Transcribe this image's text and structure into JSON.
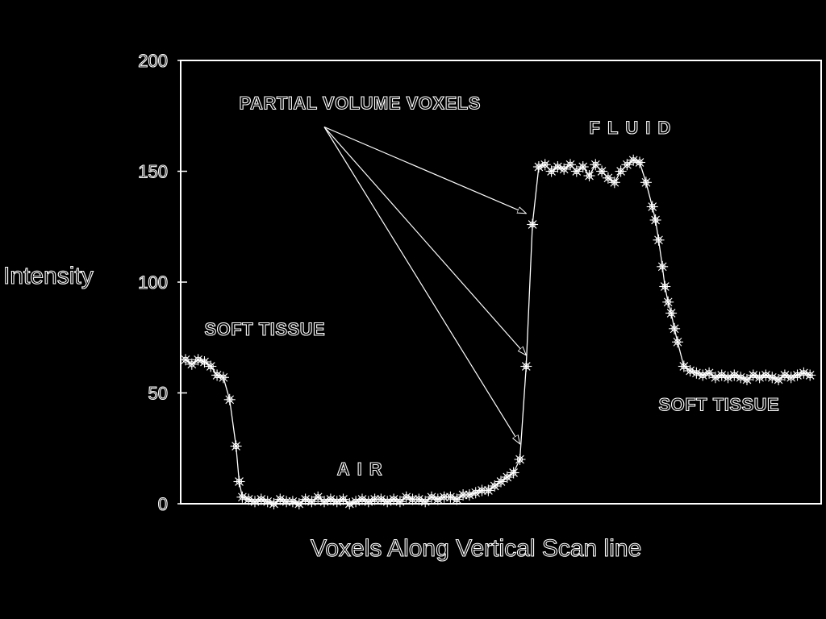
{
  "chart_data": {
    "type": "line",
    "xlabel": "Voxels Along Vertical Scan line",
    "ylabel": "Intensity",
    "ylim": [
      0,
      200
    ],
    "yticks": [
      0,
      50,
      100,
      150,
      200
    ],
    "x_range": [
      0,
      100
    ],
    "grid": false,
    "legend": "none",
    "series": [
      {
        "marker": "asterisk",
        "points": [
          {
            "x": 0,
            "y": 65
          },
          {
            "x": 1,
            "y": 63
          },
          {
            "x": 2,
            "y": 65
          },
          {
            "x": 3,
            "y": 64
          },
          {
            "x": 4,
            "y": 62
          },
          {
            "x": 5,
            "y": 58
          },
          {
            "x": 6,
            "y": 57
          },
          {
            "x": 7,
            "y": 47
          },
          {
            "x": 8,
            "y": 26
          },
          {
            "x": 8.5,
            "y": 10
          },
          {
            "x": 9,
            "y": 3
          },
          {
            "x": 10,
            "y": 2
          },
          {
            "x": 11,
            "y": 1
          },
          {
            "x": 12,
            "y": 2
          },
          {
            "x": 13,
            "y": 1
          },
          {
            "x": 14,
            "y": 0
          },
          {
            "x": 15,
            "y": 2
          },
          {
            "x": 16,
            "y": 1
          },
          {
            "x": 17,
            "y": 1
          },
          {
            "x": 18,
            "y": 0
          },
          {
            "x": 19,
            "y": 2
          },
          {
            "x": 20,
            "y": 1
          },
          {
            "x": 21,
            "y": 3
          },
          {
            "x": 22,
            "y": 1
          },
          {
            "x": 23,
            "y": 2
          },
          {
            "x": 24,
            "y": 1
          },
          {
            "x": 25,
            "y": 2
          },
          {
            "x": 26,
            "y": 0
          },
          {
            "x": 27,
            "y": 1
          },
          {
            "x": 28,
            "y": 2
          },
          {
            "x": 29,
            "y": 1
          },
          {
            "x": 30,
            "y": 2
          },
          {
            "x": 31,
            "y": 2
          },
          {
            "x": 32,
            "y": 1
          },
          {
            "x": 33,
            "y": 2
          },
          {
            "x": 34,
            "y": 1
          },
          {
            "x": 35,
            "y": 3
          },
          {
            "x": 36,
            "y": 2
          },
          {
            "x": 37,
            "y": 2
          },
          {
            "x": 38,
            "y": 1
          },
          {
            "x": 39,
            "y": 3
          },
          {
            "x": 40,
            "y": 2
          },
          {
            "x": 41,
            "y": 3
          },
          {
            "x": 42,
            "y": 3
          },
          {
            "x": 43,
            "y": 2
          },
          {
            "x": 44,
            "y": 4
          },
          {
            "x": 45,
            "y": 4
          },
          {
            "x": 46,
            "y": 5
          },
          {
            "x": 47,
            "y": 6
          },
          {
            "x": 48,
            "y": 6
          },
          {
            "x": 49,
            "y": 8
          },
          {
            "x": 50,
            "y": 10
          },
          {
            "x": 51,
            "y": 12
          },
          {
            "x": 52,
            "y": 14
          },
          {
            "x": 53,
            "y": 20
          },
          {
            "x": 54,
            "y": 62
          },
          {
            "x": 55,
            "y": 126
          },
          {
            "x": 56,
            "y": 152
          },
          {
            "x": 57,
            "y": 153
          },
          {
            "x": 58,
            "y": 150
          },
          {
            "x": 59,
            "y": 152
          },
          {
            "x": 60,
            "y": 151
          },
          {
            "x": 61,
            "y": 153
          },
          {
            "x": 62,
            "y": 150
          },
          {
            "x": 63,
            "y": 152
          },
          {
            "x": 64,
            "y": 148
          },
          {
            "x": 65,
            "y": 153
          },
          {
            "x": 66,
            "y": 150
          },
          {
            "x": 67,
            "y": 147
          },
          {
            "x": 68,
            "y": 145
          },
          {
            "x": 69,
            "y": 150
          },
          {
            "x": 70,
            "y": 153
          },
          {
            "x": 71,
            "y": 155
          },
          {
            "x": 72,
            "y": 154
          },
          {
            "x": 73,
            "y": 145
          },
          {
            "x": 74,
            "y": 134
          },
          {
            "x": 74.5,
            "y": 128
          },
          {
            "x": 75,
            "y": 119
          },
          {
            "x": 75.6,
            "y": 107
          },
          {
            "x": 76,
            "y": 98
          },
          {
            "x": 76.5,
            "y": 91
          },
          {
            "x": 77,
            "y": 86
          },
          {
            "x": 77.5,
            "y": 79
          },
          {
            "x": 78,
            "y": 73
          },
          {
            "x": 79,
            "y": 62
          },
          {
            "x": 80,
            "y": 60
          },
          {
            "x": 81,
            "y": 59
          },
          {
            "x": 82,
            "y": 58
          },
          {
            "x": 83,
            "y": 59
          },
          {
            "x": 84,
            "y": 57
          },
          {
            "x": 85,
            "y": 58
          },
          {
            "x": 86,
            "y": 57
          },
          {
            "x": 87,
            "y": 58
          },
          {
            "x": 88,
            "y": 57
          },
          {
            "x": 89,
            "y": 56
          },
          {
            "x": 90,
            "y": 58
          },
          {
            "x": 91,
            "y": 57
          },
          {
            "x": 92,
            "y": 58
          },
          {
            "x": 93,
            "y": 57
          },
          {
            "x": 94,
            "y": 56
          },
          {
            "x": 95,
            "y": 58
          },
          {
            "x": 96,
            "y": 57
          },
          {
            "x": 97,
            "y": 58
          },
          {
            "x": 98,
            "y": 59
          },
          {
            "x": 99,
            "y": 58
          }
        ]
      }
    ],
    "annotations": [
      {
        "text": "SOFT TISSUE",
        "x": 3,
        "y": 76
      },
      {
        "text": "AIR",
        "x": 24,
        "y": 13
      },
      {
        "text": "PARTIAL VOLUME VOXELS",
        "x": 8.5,
        "y": 178,
        "arrows_to": [
          {
            "x": 54,
            "y": 131
          },
          {
            "x": 54,
            "y": 67
          },
          {
            "x": 53,
            "y": 27
          }
        ],
        "arrow_origin": {
          "x": 22,
          "y": 170
        }
      },
      {
        "text": "FLUID",
        "x": 64,
        "y": 167
      },
      {
        "text": "SOFT TISSUE",
        "x": 75,
        "y": 42
      }
    ]
  }
}
